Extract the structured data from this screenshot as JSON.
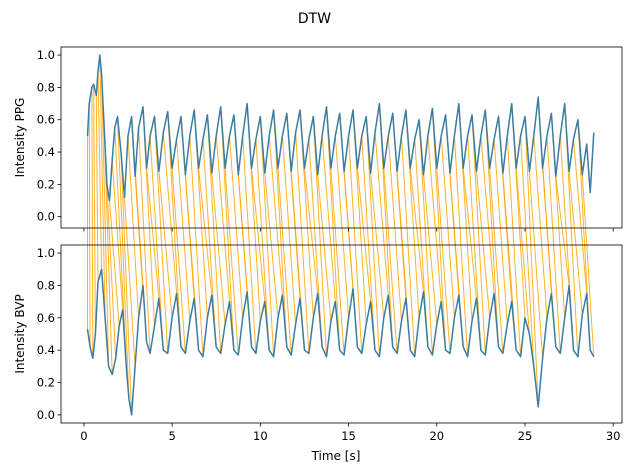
{
  "chart_data": {
    "type": "line",
    "title": "DTW",
    "xlabel": "Time [s]",
    "xlim": [
      -1.3,
      30.5
    ],
    "xticks": [
      0,
      5,
      10,
      15,
      20,
      25,
      30
    ],
    "xtick_labels": [
      "0",
      "5",
      "10",
      "15",
      "20",
      "25",
      "30"
    ],
    "colors": {
      "signal": "#3b7da0",
      "alignment": "#ffa500"
    },
    "panels": [
      {
        "position": "top",
        "ylabel": "Intensity PPG",
        "ylim": [
          -0.07,
          1.05
        ],
        "yticks": [
          0.0,
          0.2,
          0.4,
          0.6,
          0.8,
          1.0
        ],
        "ytick_labels": [
          "0.0",
          "0.2",
          "0.4",
          "0.6",
          "0.8",
          "1.0"
        ],
        "series": [
          {
            "x": [
              0.2,
              0.3,
              0.45,
              0.55,
              0.7,
              0.8,
              0.9,
              1.0,
              1.15,
              1.3,
              1.45,
              1.6,
              1.75,
              1.9,
              2.1,
              2.3,
              2.5,
              2.7,
              2.9,
              3.1,
              3.35,
              3.55,
              3.75,
              4.0,
              4.25,
              4.5,
              4.75,
              5.0,
              5.25,
              5.5,
              5.75,
              6.0,
              6.25,
              6.5,
              6.75,
              7.0,
              7.25,
              7.5,
              7.75,
              8.0,
              8.25,
              8.5,
              8.75,
              9.0,
              9.25,
              9.5,
              9.75,
              10.0,
              10.25,
              10.5,
              10.75,
              11.0,
              11.25,
              11.5,
              11.75,
              12.0,
              12.25,
              12.5,
              12.75,
              13.0,
              13.25,
              13.5,
              13.75,
              14.0,
              14.25,
              14.5,
              14.75,
              15.0,
              15.25,
              15.5,
              15.75,
              16.0,
              16.25,
              16.5,
              16.75,
              17.0,
              17.25,
              17.5,
              17.75,
              18.0,
              18.25,
              18.5,
              18.75,
              19.0,
              19.25,
              19.5,
              19.75,
              20.0,
              20.25,
              20.5,
              20.75,
              21.0,
              21.25,
              21.5,
              21.75,
              22.0,
              22.25,
              22.5,
              22.75,
              23.0,
              23.25,
              23.5,
              23.75,
              24.0,
              24.25,
              24.5,
              24.75,
              25.0,
              25.25,
              25.5,
              25.75,
              26.0,
              26.25,
              26.5,
              26.75,
              27.0,
              27.25,
              27.5,
              27.75,
              28.0,
              28.25,
              28.5,
              28.7,
              28.9
            ],
            "y": [
              0.5,
              0.7,
              0.8,
              0.82,
              0.75,
              0.9,
              1.0,
              0.88,
              0.55,
              0.2,
              0.1,
              0.35,
              0.55,
              0.62,
              0.4,
              0.12,
              0.5,
              0.62,
              0.25,
              0.55,
              0.68,
              0.3,
              0.5,
              0.62,
              0.28,
              0.52,
              0.65,
              0.3,
              0.48,
              0.62,
              0.26,
              0.5,
              0.66,
              0.3,
              0.48,
              0.63,
              0.27,
              0.5,
              0.68,
              0.3,
              0.5,
              0.63,
              0.26,
              0.5,
              0.7,
              0.3,
              0.48,
              0.62,
              0.27,
              0.5,
              0.66,
              0.3,
              0.5,
              0.64,
              0.28,
              0.52,
              0.66,
              0.3,
              0.48,
              0.62,
              0.26,
              0.5,
              0.68,
              0.3,
              0.5,
              0.64,
              0.28,
              0.5,
              0.66,
              0.3,
              0.5,
              0.62,
              0.27,
              0.52,
              0.7,
              0.3,
              0.5,
              0.64,
              0.28,
              0.5,
              0.66,
              0.3,
              0.48,
              0.6,
              0.26,
              0.5,
              0.67,
              0.3,
              0.5,
              0.63,
              0.27,
              0.5,
              0.7,
              0.3,
              0.5,
              0.63,
              0.28,
              0.5,
              0.66,
              0.3,
              0.48,
              0.62,
              0.27,
              0.5,
              0.7,
              0.3,
              0.5,
              0.62,
              0.28,
              0.5,
              0.74,
              0.3,
              0.5,
              0.64,
              0.25,
              0.5,
              0.7,
              0.28,
              0.48,
              0.6,
              0.26,
              0.45,
              0.15,
              0.52
            ]
          }
        ]
      },
      {
        "position": "bottom",
        "ylabel": "Intensity BVP",
        "ylim": [
          -0.05,
          1.05
        ],
        "yticks": [
          0.0,
          0.2,
          0.4,
          0.6,
          0.8,
          1.0
        ],
        "ytick_labels": [
          "0.0",
          "0.2",
          "0.4",
          "0.6",
          "0.8",
          "1.0"
        ],
        "series": [
          {
            "x": [
              0.2,
              0.35,
              0.5,
              0.65,
              0.8,
              1.0,
              1.2,
              1.4,
              1.6,
              1.8,
              2.0,
              2.2,
              2.4,
              2.55,
              2.7,
              2.9,
              3.1,
              3.35,
              3.55,
              3.75,
              4.0,
              4.25,
              4.5,
              4.75,
              5.0,
              5.25,
              5.5,
              5.75,
              6.0,
              6.25,
              6.5,
              6.75,
              7.0,
              7.25,
              7.5,
              7.75,
              8.0,
              8.25,
              8.5,
              8.75,
              9.0,
              9.25,
              9.5,
              9.75,
              10.0,
              10.25,
              10.5,
              10.75,
              11.0,
              11.25,
              11.5,
              11.75,
              12.0,
              12.25,
              12.5,
              12.75,
              13.0,
              13.25,
              13.5,
              13.75,
              14.0,
              14.25,
              14.5,
              14.75,
              15.0,
              15.25,
              15.5,
              15.75,
              16.0,
              16.25,
              16.5,
              16.75,
              17.0,
              17.25,
              17.5,
              17.75,
              18.0,
              18.25,
              18.5,
              18.75,
              19.0,
              19.25,
              19.5,
              19.75,
              20.0,
              20.25,
              20.5,
              20.75,
              21.0,
              21.25,
              21.5,
              21.75,
              22.0,
              22.25,
              22.5,
              22.75,
              23.0,
              23.25,
              23.5,
              23.75,
              24.0,
              24.25,
              24.5,
              24.75,
              25.0,
              25.25,
              25.5,
              25.75,
              26.0,
              26.25,
              26.5,
              26.75,
              27.0,
              27.25,
              27.5,
              27.75,
              28.0,
              28.25,
              28.5,
              28.7,
              28.9
            ],
            "y": [
              0.53,
              0.42,
              0.35,
              0.5,
              0.82,
              0.9,
              0.6,
              0.3,
              0.25,
              0.35,
              0.55,
              0.65,
              0.3,
              0.1,
              0.0,
              0.3,
              0.6,
              0.8,
              0.45,
              0.38,
              0.55,
              0.72,
              0.4,
              0.38,
              0.6,
              0.75,
              0.42,
              0.38,
              0.58,
              0.72,
              0.4,
              0.36,
              0.6,
              0.74,
              0.42,
              0.38,
              0.56,
              0.7,
              0.4,
              0.37,
              0.6,
              0.76,
              0.42,
              0.38,
              0.58,
              0.7,
              0.4,
              0.36,
              0.6,
              0.74,
              0.42,
              0.37,
              0.56,
              0.72,
              0.4,
              0.38,
              0.6,
              0.75,
              0.42,
              0.36,
              0.58,
              0.7,
              0.4,
              0.37,
              0.6,
              0.78,
              0.42,
              0.38,
              0.56,
              0.7,
              0.4,
              0.36,
              0.6,
              0.74,
              0.42,
              0.38,
              0.58,
              0.72,
              0.4,
              0.36,
              0.6,
              0.76,
              0.42,
              0.37,
              0.56,
              0.7,
              0.4,
              0.38,
              0.6,
              0.74,
              0.42,
              0.36,
              0.58,
              0.72,
              0.4,
              0.37,
              0.6,
              0.75,
              0.42,
              0.38,
              0.56,
              0.7,
              0.4,
              0.36,
              0.6,
              0.5,
              0.3,
              0.05,
              0.35,
              0.6,
              0.75,
              0.42,
              0.38,
              0.6,
              0.8,
              0.4,
              0.36,
              0.62,
              0.75,
              0.4,
              0.36
            ]
          }
        ]
      }
    ]
  }
}
